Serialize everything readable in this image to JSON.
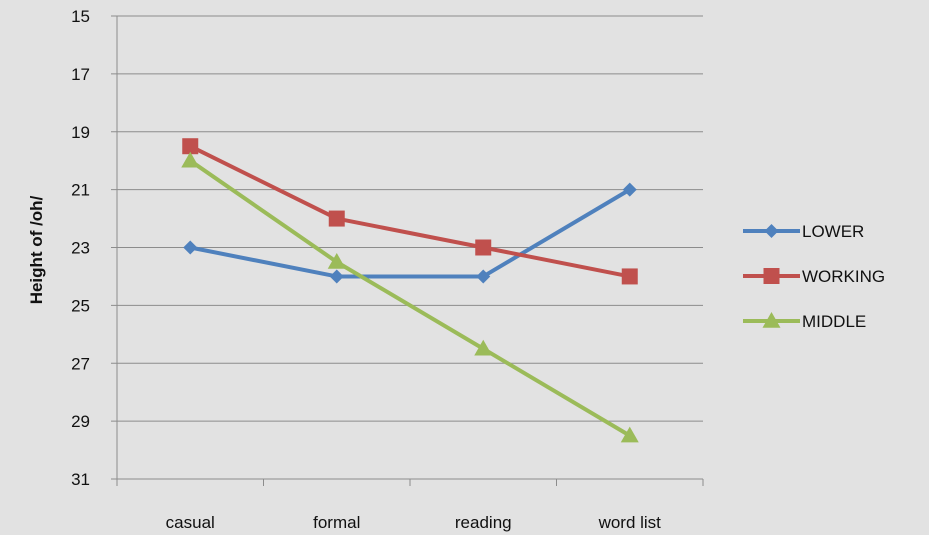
{
  "chart_data": {
    "type": "line",
    "title": "",
    "xlabel": "",
    "ylabel": "Height of /oh/",
    "categories": [
      "casual",
      "formal",
      "reading",
      "word list"
    ],
    "ylim": [
      15,
      31
    ],
    "y_inverted": true,
    "y_ticks": [
      15,
      17,
      19,
      21,
      23,
      25,
      27,
      29,
      31
    ],
    "grid": true,
    "legend_position": "right",
    "series": [
      {
        "name": "LOWER",
        "values": [
          23,
          24,
          24,
          21
        ],
        "color": "#4f81bd",
        "marker": "diamond"
      },
      {
        "name": "WORKING",
        "values": [
          19.5,
          22,
          23,
          24
        ],
        "color": "#c0504d",
        "marker": "square"
      },
      {
        "name": "MIDDLE",
        "values": [
          20,
          23.5,
          26.5,
          29.5
        ],
        "color": "#9bbb59",
        "marker": "triangle"
      }
    ]
  }
}
